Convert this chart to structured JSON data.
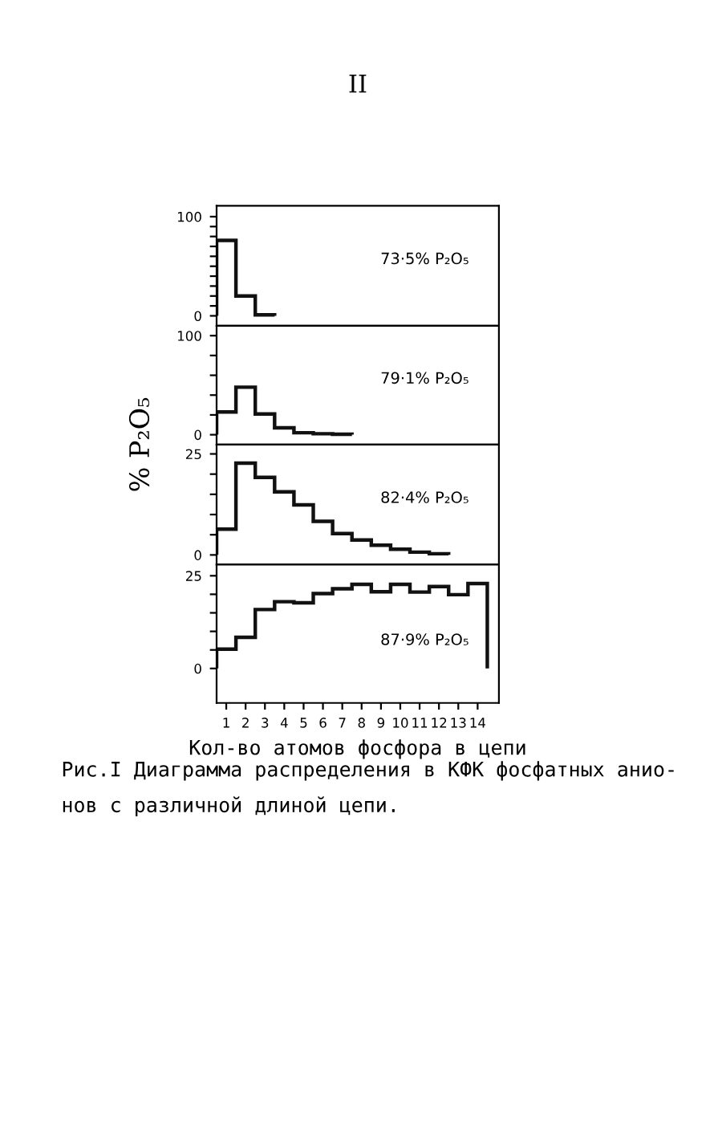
{
  "chart_data": [
    {
      "type": "histogram",
      "bins": [
        0.5,
        1.5,
        2.5,
        3.5
      ],
      "values": [
        76,
        20,
        1
      ],
      "color": "#111111",
      "xlim": [
        0.5,
        15.1
      ],
      "xticks": [
        1,
        2,
        3,
        4,
        5,
        6,
        7,
        8,
        9,
        10,
        11,
        12,
        13,
        14
      ],
      "ylim": [
        -10,
        111
      ],
      "yticks": [
        0,
        {
          "value": 10,
          "label": null
        },
        {
          "value": 20,
          "label": null
        },
        {
          "value": 30,
          "label": null
        },
        {
          "value": 40,
          "label": null
        },
        {
          "value": 50,
          "label": null
        },
        {
          "value": 60,
          "label": null
        },
        {
          "value": 70,
          "label": null
        },
        {
          "value": 80,
          "label": null
        },
        {
          "value": 90,
          "label": null
        },
        100
      ],
      "tick_labels": "y",
      "annotations": [
        "73·5% P₂O₅",
        "II"
      ]
    },
    {
      "type": "histogram",
      "bins": [
        0.5,
        1.5,
        2.5,
        3.5,
        4.5,
        5.5,
        6.5,
        7.5
      ],
      "values": [
        23,
        48,
        21,
        7,
        2,
        1,
        0.5
      ],
      "color": "#111111",
      "xlim": [
        0.5,
        15.1
      ],
      "xticks": [
        1,
        2,
        3,
        4,
        5,
        6,
        7,
        8,
        9,
        10,
        11,
        12,
        13,
        14
      ],
      "ylim": [
        -10,
        110
      ],
      "yticks": [
        0,
        {
          "value": 20,
          "label": null
        },
        {
          "value": 40,
          "label": null
        },
        {
          "value": 60,
          "label": null
        },
        {
          "value": 80,
          "label": null
        },
        100
      ],
      "tick_labels": "y",
      "ylabel": "% P₂O₅",
      "annotations": [
        "79·1% P₂O₅"
      ]
    },
    {
      "type": "histogram",
      "bins": [
        0.5,
        1.5,
        2.5,
        3.5,
        4.5,
        5.5,
        6.5,
        7.5,
        8.5,
        9.5,
        10.5,
        11.5,
        12.5
      ],
      "values": [
        6.4,
        22.7,
        19.2,
        15.6,
        12.4,
        8.3,
        5.3,
        3.7,
        2.4,
        1.4,
        0.7,
        0.3
      ],
      "color": "#111111",
      "xlim": [
        0.5,
        15.1
      ],
      "xticks": [
        1,
        2,
        3,
        4,
        5,
        6,
        7,
        8,
        9,
        10,
        11,
        12,
        13,
        14
      ],
      "ylim": [
        -2.4,
        27.3
      ],
      "yticks": [
        0,
        {
          "value": 5,
          "label": null
        },
        {
          "value": 10,
          "label": null
        },
        {
          "value": 15,
          "label": null
        },
        {
          "value": 20,
          "label": null
        },
        25
      ],
      "tick_labels": "y",
      "annotations": [
        "82·4% P₂O₅"
      ]
    },
    {
      "type": "histogram",
      "bins": [
        0.5,
        1.5,
        2.5,
        3.5,
        4.5,
        5.5,
        6.5,
        7.5,
        8.5,
        9.5,
        10.5,
        11.5,
        12.5,
        13.5,
        14.5
      ],
      "values": [
        5.2,
        8.4,
        15.9,
        18.0,
        17.7,
        20.2,
        21.5,
        22.7,
        20.7,
        22.7,
        20.6,
        22.1,
        19.9,
        22.9
      ],
      "color": "#111111",
      "xlim": [
        0.5,
        15.1
      ],
      "xticks": [
        1,
        2,
        3,
        4,
        5,
        6,
        7,
        8,
        9,
        10,
        11,
        12,
        13,
        14
      ],
      "ylim": [
        -9.3,
        28
      ],
      "yticks": [
        0,
        {
          "value": 5,
          "label": null
        },
        {
          "value": 10,
          "label": null
        },
        {
          "value": 15,
          "label": null
        },
        {
          "value": 20,
          "label": null
        },
        25
      ],
      "xlabel": "Кол-во атомов фосфора в цепи",
      "annotations": [
        "87·9% P₂O₅",
        "Рис.I Диаграмма распределения в КФК фосфатных анио-\nнов с различной длиной цепи."
      ]
    }
  ]
}
